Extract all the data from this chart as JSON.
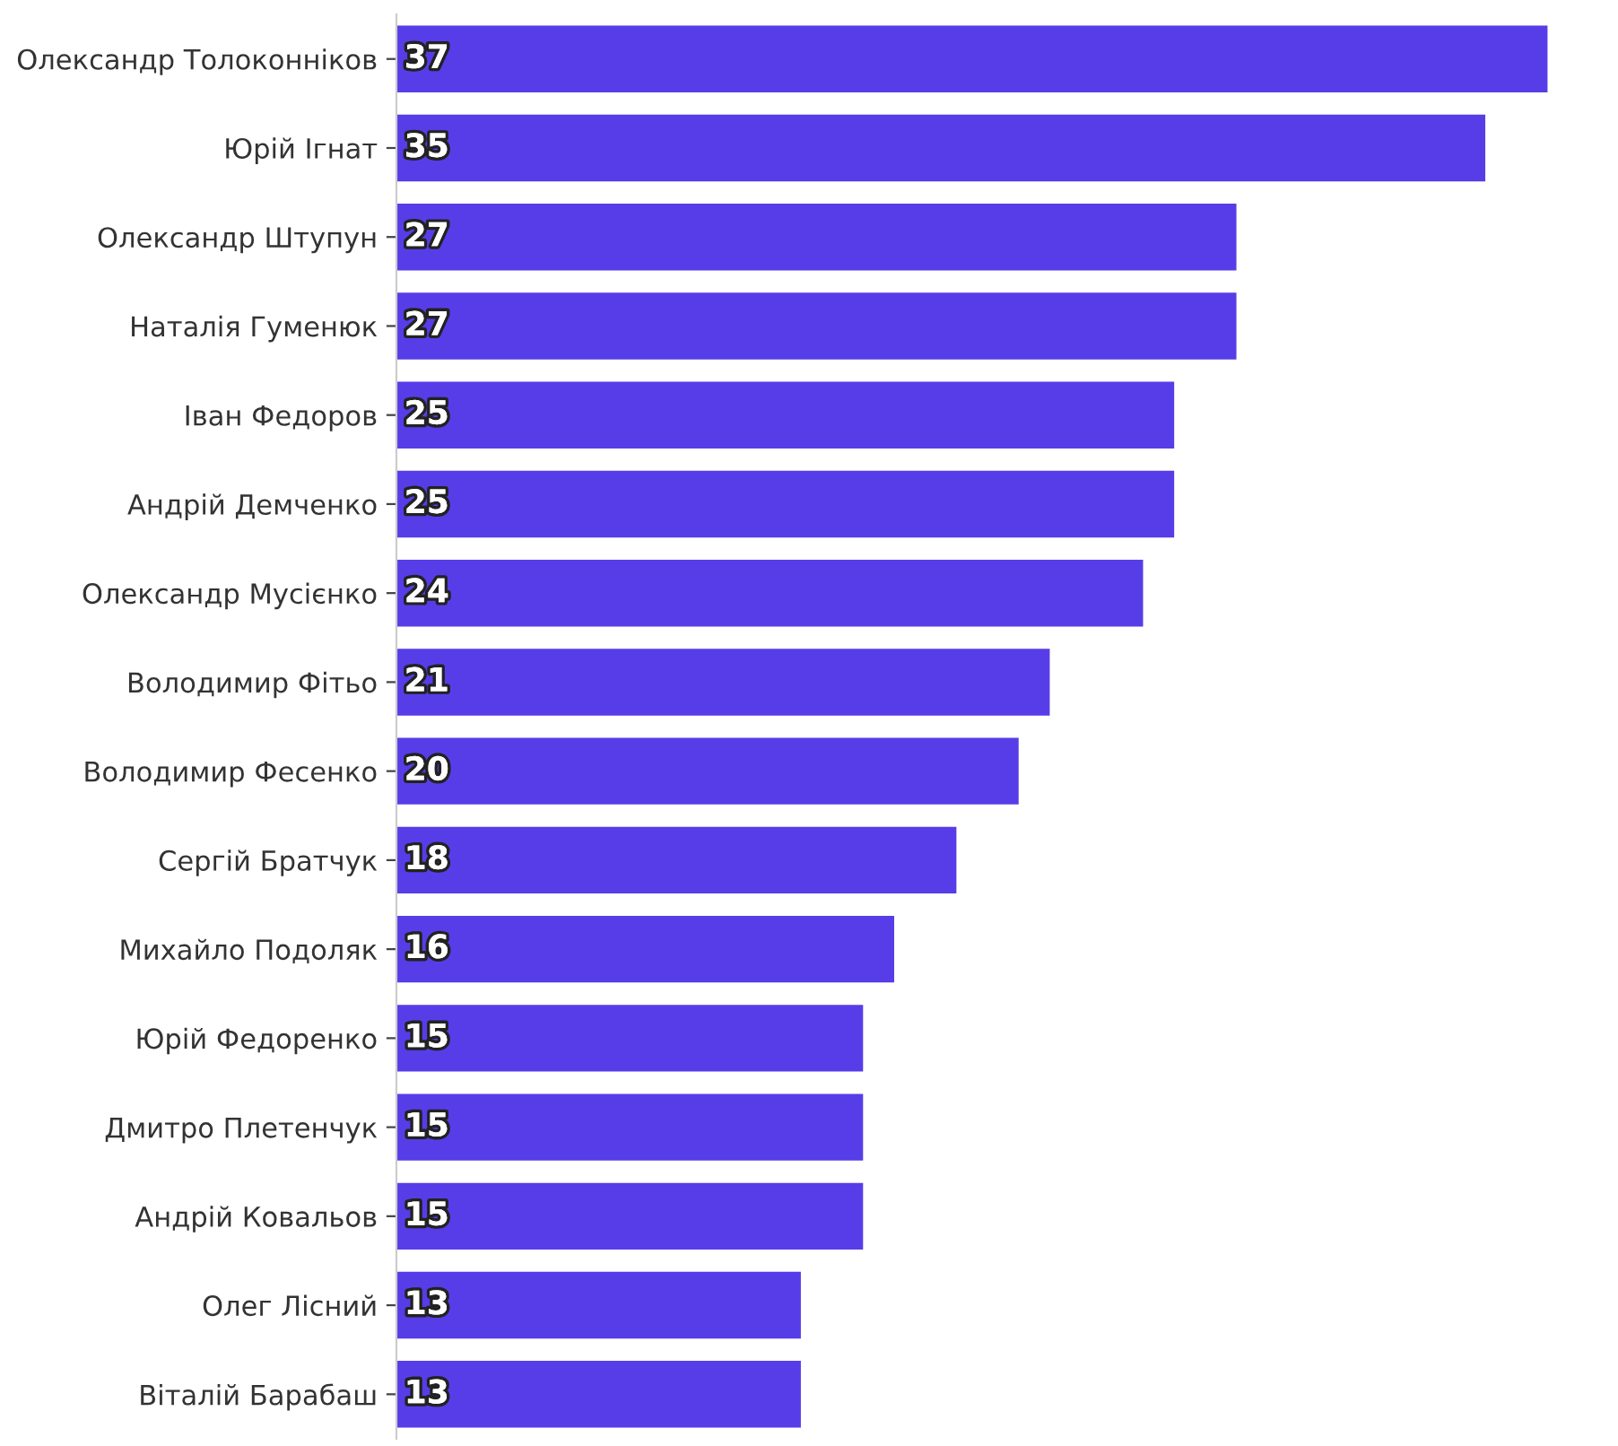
{
  "chart_data": {
    "type": "bar",
    "orientation": "horizontal",
    "categories": [
      "Олександр Толоконніков",
      "Юрій Ігнат",
      "Олександр Штупун",
      "Наталія Гуменюк",
      "Іван Федоров",
      "Андрій Демченко",
      "Олександр Мусієнко",
      "Володимир Фітьо",
      "Володимир Фесенко",
      "Сергій Братчук",
      "Михайло Подоляк",
      "Юрій Федоренко",
      "Дмитро Плетенчук",
      "Андрій Ковальов",
      "Олег Лісний",
      "Віталій Барабаш"
    ],
    "values": [
      37,
      35,
      27,
      27,
      25,
      25,
      24,
      21,
      20,
      18,
      16,
      15,
      15,
      15,
      13,
      13
    ],
    "color": "#573de8",
    "data_labels": true,
    "tick_labels": "y"
  }
}
